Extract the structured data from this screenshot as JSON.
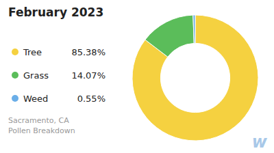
{
  "chart_data": {
    "type": "donut",
    "title": "February 2023",
    "subtitle": "Sacramento, CA\nPollen Breakdown",
    "categories": [
      "Tree",
      "Grass",
      "Weed"
    ],
    "values": [
      85.38,
      14.07,
      0.55
    ],
    "value_labels": [
      "85.38%",
      "14.07%",
      "0.55%"
    ],
    "colors": [
      "#F5D140",
      "#5BBD5A",
      "#6aaee8"
    ],
    "legend": "left",
    "annotations": [
      "w"
    ]
  }
}
